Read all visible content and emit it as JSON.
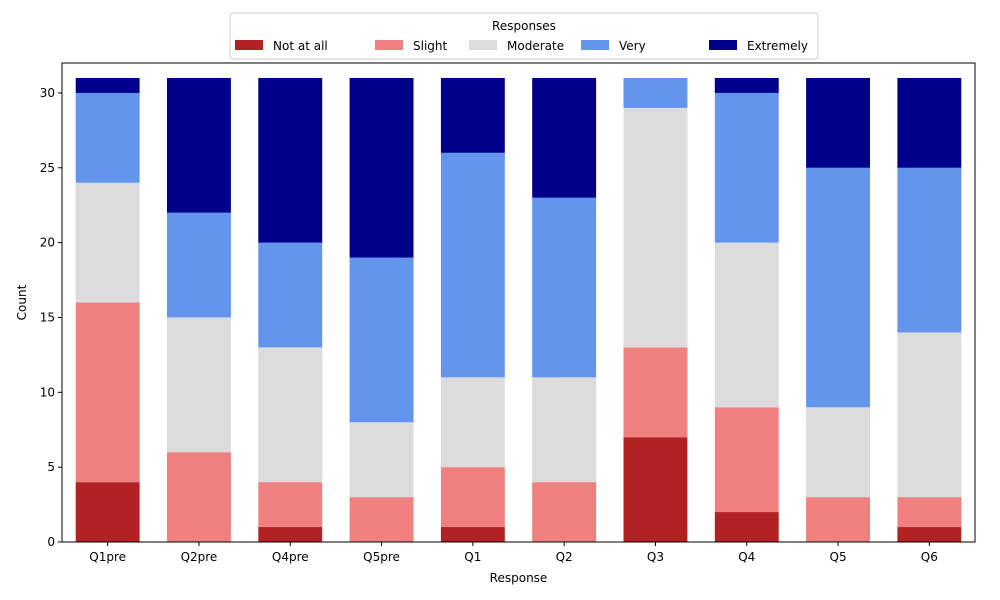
{
  "chart_data": {
    "type": "bar",
    "stacked": true,
    "categories": [
      "Q1pre",
      "Q2pre",
      "Q4pre",
      "Q5pre",
      "Q1",
      "Q2",
      "Q3",
      "Q4",
      "Q5",
      "Q6"
    ],
    "series": [
      {
        "name": "Not at all",
        "color": "#b22222",
        "values": [
          4,
          0,
          1,
          0,
          1,
          0,
          7,
          2,
          0,
          1
        ]
      },
      {
        "name": "Slight",
        "color": "#f08080",
        "values": [
          12,
          6,
          3,
          3,
          4,
          4,
          6,
          7,
          3,
          2
        ]
      },
      {
        "name": "Moderate",
        "color": "#dcdcdc",
        "values": [
          8,
          9,
          9,
          5,
          6,
          7,
          16,
          11,
          6,
          11
        ]
      },
      {
        "name": "Very",
        "color": "#6495ed",
        "values": [
          6,
          7,
          7,
          11,
          15,
          12,
          2,
          10,
          16,
          11
        ]
      },
      {
        "name": "Extremely",
        "color": "#00008b",
        "values": [
          1,
          9,
          11,
          12,
          5,
          8,
          0,
          1,
          6,
          6
        ]
      }
    ],
    "xlabel": "Response",
    "ylabel": "Count",
    "ylim": [
      0,
      32
    ],
    "yticks": [
      0,
      5,
      10,
      15,
      20,
      25,
      30
    ],
    "legend_title": "Responses",
    "legend_placement": "top-center",
    "grid": false
  }
}
